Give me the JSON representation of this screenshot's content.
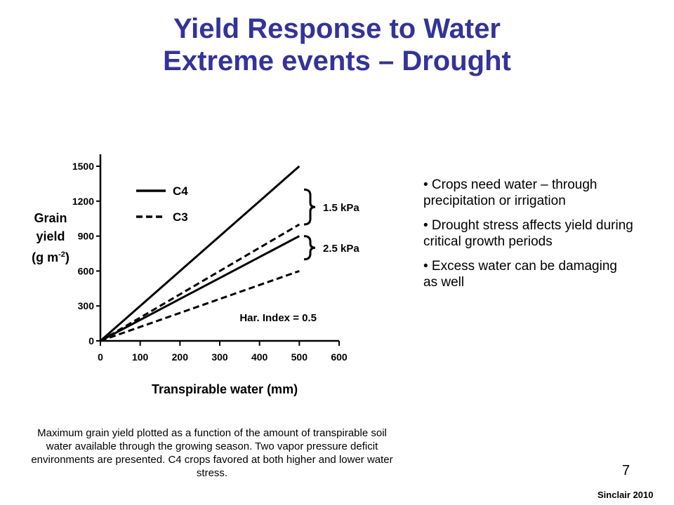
{
  "slide": {
    "title_line1": "Yield Response to Water",
    "title_line2": "Extreme events – Drought",
    "ylabel_line1": "Grain",
    "ylabel_line2": "yield",
    "ylabel_unit_base": "(g m",
    "ylabel_unit_exp": "-2",
    "ylabel_unit_close": ")",
    "xlabel": "Transpirable water (mm)",
    "bullets": [
      "• Crops need water – through precipitation or irrigation",
      "• Drought stress affects yield during critical growth periods",
      "• Excess water can be damaging as well"
    ],
    "caption": "Maximum grain yield plotted as a function of the amount of transpirable soil water available through the growing season. Two vapor pressure deficit environments are presented. C4 crops favored at both higher and lower water stress.",
    "page_number": "7",
    "credit": "Sinclair 2010"
  },
  "chart_data": {
    "type": "line",
    "x_ticks": [
      0,
      100,
      200,
      300,
      400,
      500,
      600
    ],
    "y_ticks": [
      0,
      300,
      600,
      900,
      1200,
      1500
    ],
    "xlim": [
      0,
      600
    ],
    "ylim": [
      0,
      1500
    ],
    "grid": false,
    "legend": {
      "position": "top-left",
      "entries": [
        {
          "label": "C4",
          "style": "solid"
        },
        {
          "label": "C3",
          "style": "dashed"
        }
      ]
    },
    "series": [
      {
        "group": "1.5 kPa",
        "crop": "C4",
        "style": "solid",
        "x": [
          0,
          500
        ],
        "y": [
          0,
          1500
        ]
      },
      {
        "group": "1.5 kPa",
        "crop": "C3",
        "style": "dashed",
        "x": [
          0,
          500
        ],
        "y": [
          0,
          1000
        ]
      },
      {
        "group": "2.5 kPa",
        "crop": "C4",
        "style": "solid",
        "x": [
          0,
          500
        ],
        "y": [
          0,
          900
        ]
      },
      {
        "group": "2.5 kPa",
        "crop": "C3",
        "style": "dashed",
        "x": [
          0,
          500
        ],
        "y": [
          0,
          600
        ]
      }
    ],
    "annotations": [
      {
        "text": "1.5 kPa",
        "brace_y": [
          1000,
          1300
        ]
      },
      {
        "text": "2.5 kPa",
        "brace_y": [
          700,
          900
        ]
      },
      {
        "text": "Har. Index = 0.5",
        "x": 350,
        "y": 170
      }
    ]
  }
}
